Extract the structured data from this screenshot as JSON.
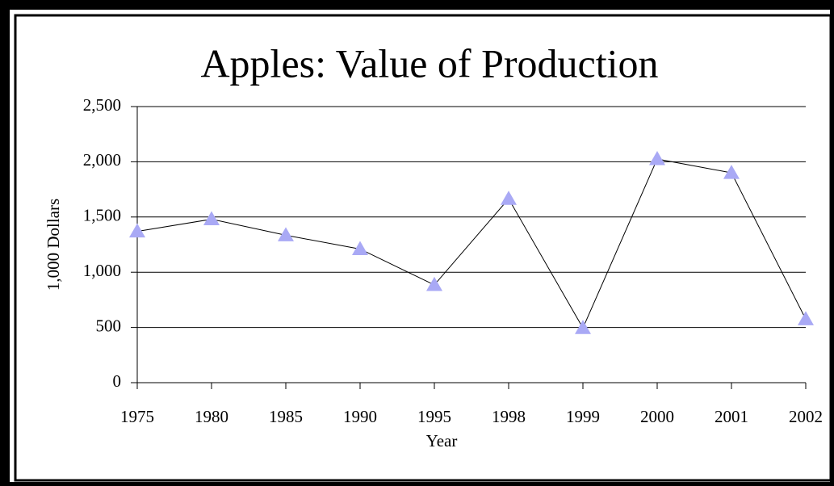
{
  "chart_data": {
    "type": "line",
    "title": "Apples:  Value of Production",
    "x_label": "Year",
    "y_label": "1,000 Dollars",
    "categories": [
      "1975",
      "1980",
      "1985",
      "1990",
      "1995",
      "1998",
      "1999",
      "2000",
      "2001",
      "2002"
    ],
    "series": [
      {
        "name": "Value of Production",
        "color": "#a9a9f5",
        "values": [
          1370,
          1480,
          1335,
          1210,
          885,
          1665,
          495,
          2025,
          1900,
          575
        ]
      }
    ],
    "ylim": [
      0,
      2500
    ],
    "yticks": [
      0,
      500,
      {
        "value": 1000,
        "label": "1,000"
      },
      {
        "value": 1500,
        "label": "1,500"
      },
      {
        "value": 2000,
        "label": "2,000"
      },
      {
        "value": 2500,
        "label": "2,500"
      }
    ],
    "grid": true
  }
}
